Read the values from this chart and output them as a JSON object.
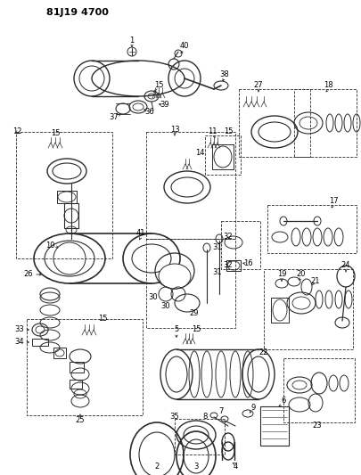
{
  "title": "81J19 4700",
  "bg_color": "#ffffff",
  "line_color": "#2a2a2a",
  "fig_width": 4.06,
  "fig_height": 5.33,
  "dpi": 100
}
